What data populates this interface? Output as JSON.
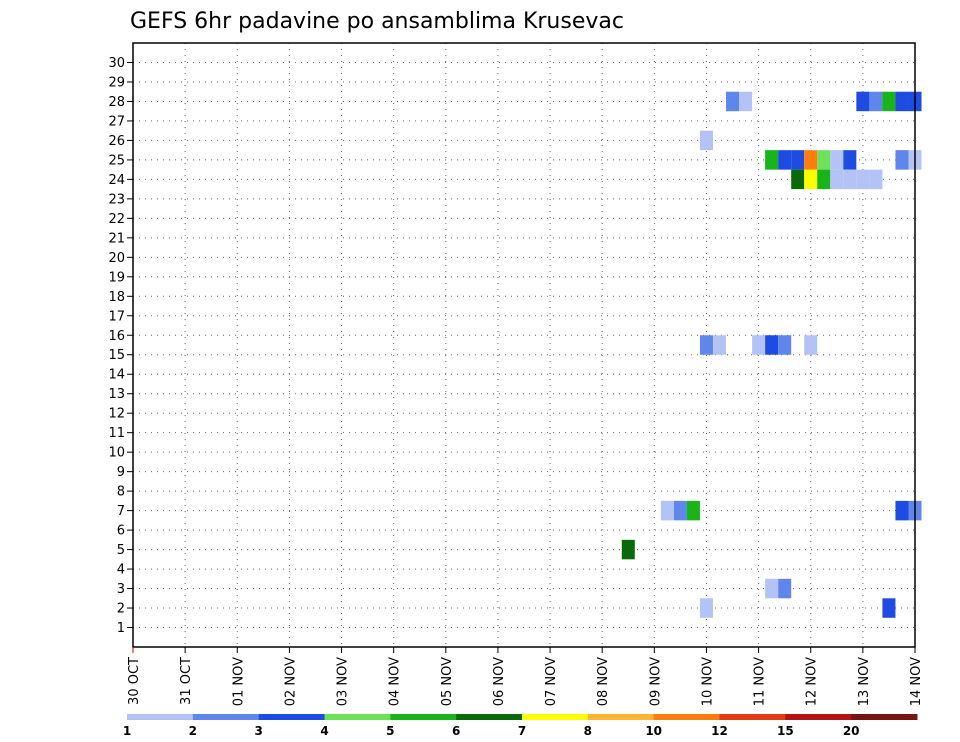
{
  "chart_data": {
    "type": "heatmap",
    "title": "GEFS 6hr padavine po ansamblima Krusevac",
    "xlabel": "",
    "ylabel": "",
    "x_ticks": [
      "30 OCT",
      "31 OCT",
      "01 NOV",
      "02 NOV",
      "03 NOV",
      "04 NOV",
      "05 NOV",
      "06 NOV",
      "07 NOV",
      "08 NOV",
      "09 NOV",
      "10 NOV",
      "11 NOV",
      "12 NOV",
      "13 NOV",
      "14 NOV"
    ],
    "xlim": [
      0,
      15
    ],
    "y_ticks": [
      "1",
      "2",
      "3",
      "4",
      "5",
      "6",
      "7",
      "8",
      "9",
      "10",
      "11",
      "12",
      "13",
      "14",
      "15",
      "16",
      "17",
      "18",
      "19",
      "20",
      "21",
      "22",
      "23",
      "24",
      "25",
      "26",
      "27",
      "28",
      "29",
      "30"
    ],
    "ylim": [
      0,
      31
    ],
    "grid": true,
    "color_scale": {
      "thresholds": [
        "1",
        "2",
        "3",
        "4",
        "5",
        "6",
        "7",
        "8",
        "10",
        "12",
        "15",
        "20"
      ],
      "colors": [
        "#b4c3f5",
        "#5f87eb",
        "#1e4be1",
        "#6ee15a",
        "#19b419",
        "#0a690a",
        "#ffff00",
        "#ffb432",
        "#ff7d0f",
        "#e13c14",
        "#b41414",
        "#781414"
      ]
    },
    "cells": [
      {
        "member": 28,
        "day": 11.5,
        "color": "#5f87eb"
      },
      {
        "member": 28,
        "day": 11.75,
        "color": "#b4c3f5"
      },
      {
        "member": 28,
        "day": 14.0,
        "color": "#1e4be1"
      },
      {
        "member": 28,
        "day": 14.25,
        "color": "#5f87eb"
      },
      {
        "member": 28,
        "day": 14.5,
        "color": "#19b419"
      },
      {
        "member": 28,
        "day": 14.75,
        "color": "#1e4be1"
      },
      {
        "member": 28,
        "day": 15.0,
        "color": "#1e4be1"
      },
      {
        "member": 26,
        "day": 11.0,
        "color": "#b4c3f5"
      },
      {
        "member": 25,
        "day": 12.25,
        "color": "#19b419"
      },
      {
        "member": 25,
        "day": 12.5,
        "color": "#1e4be1"
      },
      {
        "member": 25,
        "day": 12.75,
        "color": "#1e4be1"
      },
      {
        "member": 25,
        "day": 13.0,
        "color": "#ff7d0f"
      },
      {
        "member": 25,
        "day": 13.25,
        "color": "#6ee15a"
      },
      {
        "member": 25,
        "day": 13.5,
        "color": "#b4c3f5"
      },
      {
        "member": 25,
        "day": 13.75,
        "color": "#1e4be1"
      },
      {
        "member": 25,
        "day": 14.75,
        "color": "#5f87eb"
      },
      {
        "member": 25,
        "day": 15.0,
        "color": "#b4c3f5"
      },
      {
        "member": 24,
        "day": 12.75,
        "color": "#0a690a"
      },
      {
        "member": 24,
        "day": 13.0,
        "color": "#ffff00"
      },
      {
        "member": 24,
        "day": 13.25,
        "color": "#19b419"
      },
      {
        "member": 24,
        "day": 13.5,
        "color": "#b4c3f5"
      },
      {
        "member": 24,
        "day": 13.75,
        "color": "#b4c3f5"
      },
      {
        "member": 24,
        "day": 14.0,
        "color": "#b4c3f5"
      },
      {
        "member": 24,
        "day": 14.25,
        "color": "#b4c3f5"
      },
      {
        "member": 15.5,
        "day": 11.0,
        "color": "#5f87eb"
      },
      {
        "member": 15.5,
        "day": 11.25,
        "color": "#b4c3f5"
      },
      {
        "member": 15.5,
        "day": 12.0,
        "color": "#b4c3f5"
      },
      {
        "member": 15.5,
        "day": 12.25,
        "color": "#1e4be1"
      },
      {
        "member": 15.5,
        "day": 12.5,
        "color": "#5f87eb"
      },
      {
        "member": 15.5,
        "day": 13.0,
        "color": "#b4c3f5"
      },
      {
        "member": 7,
        "day": 10.25,
        "color": "#b4c3f5"
      },
      {
        "member": 7,
        "day": 10.5,
        "color": "#5f87eb"
      },
      {
        "member": 7,
        "day": 10.75,
        "color": "#19b419"
      },
      {
        "member": 7,
        "day": 14.75,
        "color": "#1e4be1"
      },
      {
        "member": 7,
        "day": 15.0,
        "color": "#5f87eb"
      },
      {
        "member": 5,
        "day": 9.5,
        "color": "#0a690a"
      },
      {
        "member": 3,
        "day": 12.25,
        "color": "#b4c3f5"
      },
      {
        "member": 3,
        "day": 12.5,
        "color": "#5f87eb"
      },
      {
        "member": 2,
        "day": 11.0,
        "color": "#b4c3f5"
      },
      {
        "member": 2,
        "day": 14.5,
        "color": "#1e4be1"
      }
    ]
  }
}
